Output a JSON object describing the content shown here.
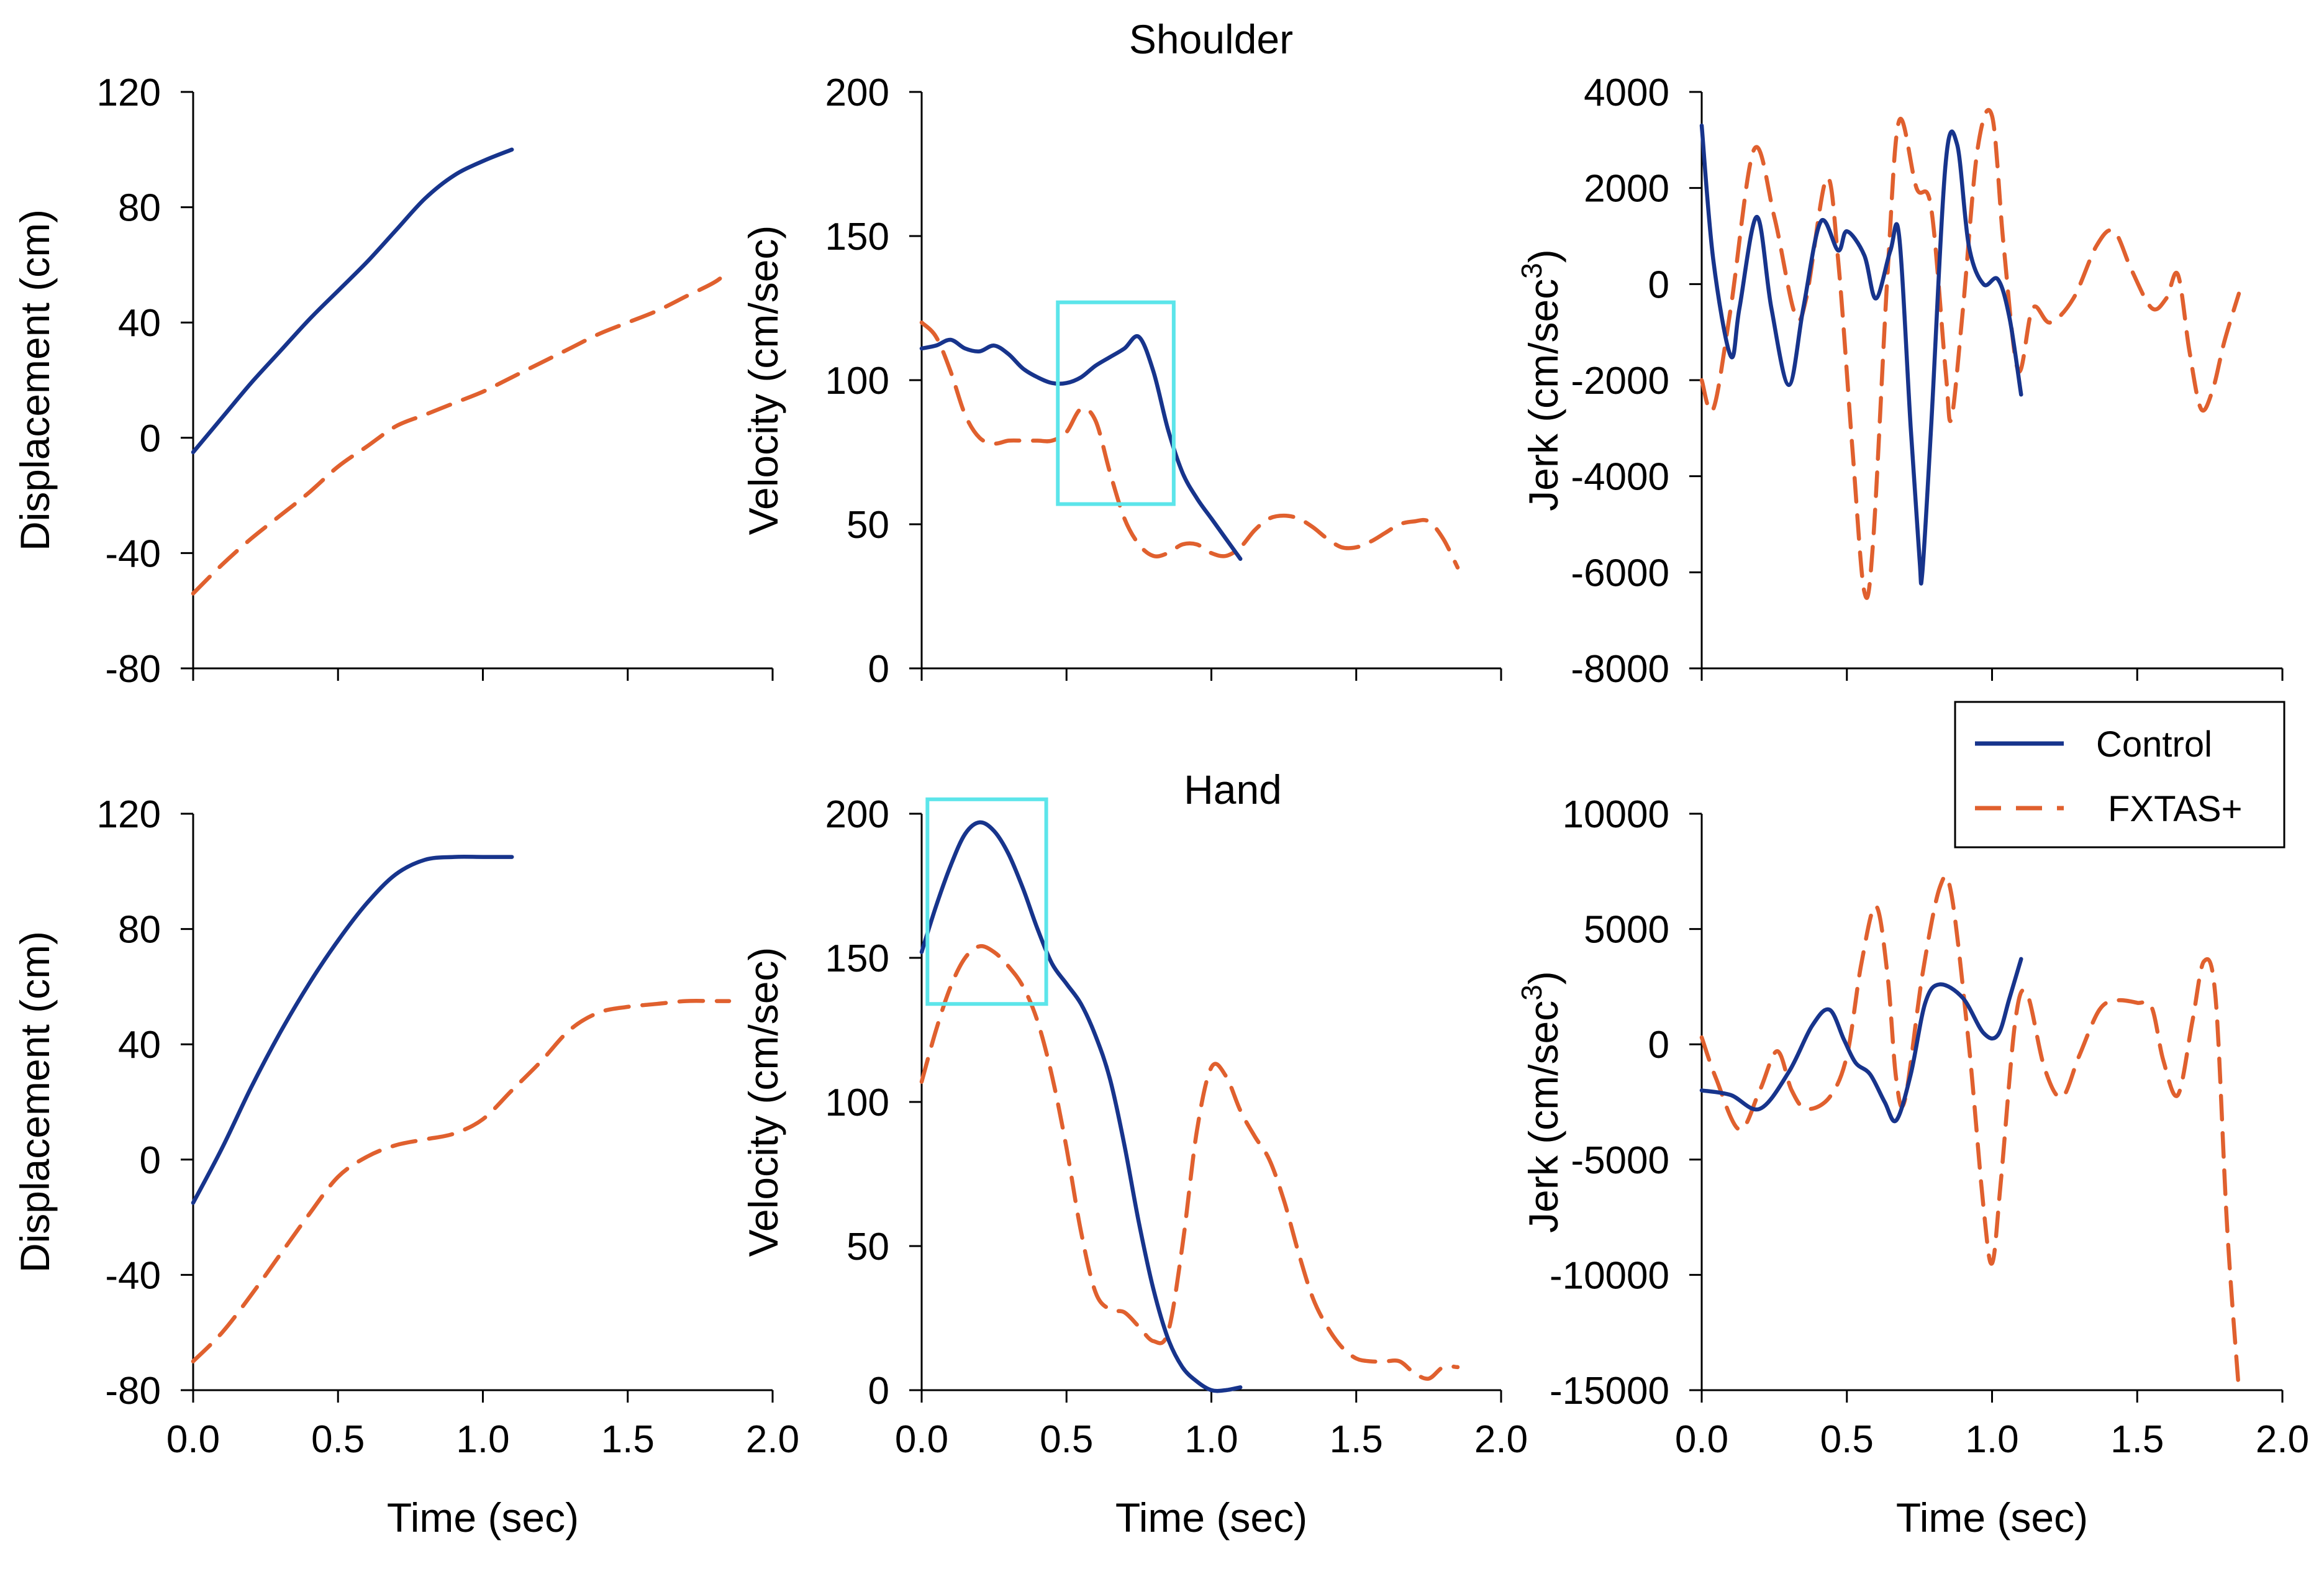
{
  "colors": {
    "control": "#17348c",
    "fxtas": "#e0602e",
    "highlight": "#5ce5ea"
  },
  "section_titles": {
    "shoulder": "Shoulder",
    "hand": "Hand"
  },
  "legend": {
    "control": "Control",
    "fxtas": "FXTAS+"
  },
  "chart_data": [
    {
      "id": "shoulder-displacement",
      "type": "line",
      "section": "Shoulder",
      "title": "",
      "xlabel": "Time (sec)",
      "ylabel": "Displacement (cm)",
      "xlim": [
        0,
        2
      ],
      "ylim": [
        -80,
        120
      ],
      "xticks": [
        0,
        0.5,
        1,
        1.5,
        2
      ],
      "yticks": [
        -80,
        -40,
        0,
        40,
        80,
        120
      ],
      "xtick_labels": [
        "0.0",
        "0.5",
        "1.0",
        "1.5",
        "2.0"
      ],
      "ytick_labels": [
        "-80",
        "-40",
        "0",
        "40",
        "80",
        "120"
      ],
      "show_xtick_labels": false,
      "show_xlabel": false,
      "series": [
        {
          "name": "Control",
          "style": "solid",
          "x": [
            0,
            0.1,
            0.2,
            0.3,
            0.4,
            0.5,
            0.6,
            0.7,
            0.8,
            0.9,
            1.0,
            1.1
          ],
          "y": [
            -5,
            7,
            19,
            30,
            41,
            51,
            61,
            72,
            83,
            91,
            96,
            100
          ]
        },
        {
          "name": "FXTAS+",
          "style": "dashed",
          "x": [
            0,
            0.1,
            0.2,
            0.3,
            0.4,
            0.5,
            0.6,
            0.7,
            0.8,
            0.9,
            1.0,
            1.1,
            1.2,
            1.3,
            1.4,
            1.5,
            1.6,
            1.7,
            1.8,
            1.85
          ],
          "y": [
            -54,
            -44,
            -35,
            -27,
            -19,
            -10,
            -3,
            4,
            8,
            12,
            16,
            21,
            26,
            31,
            36,
            40,
            44,
            49,
            54,
            58
          ]
        }
      ]
    },
    {
      "id": "shoulder-velocity",
      "type": "line",
      "section": "Shoulder",
      "title": "",
      "xlabel": "Time (sec)",
      "ylabel": "Velocity (cm/sec)",
      "xlim": [
        0,
        2
      ],
      "ylim": [
        0,
        200
      ],
      "xticks": [
        0,
        0.5,
        1,
        1.5,
        2
      ],
      "yticks": [
        0,
        50,
        100,
        150,
        200
      ],
      "xtick_labels": [
        "0.0",
        "0.5",
        "1.0",
        "1.5",
        "2.0"
      ],
      "ytick_labels": [
        "0",
        "50",
        "100",
        "150",
        "200"
      ],
      "show_xtick_labels": false,
      "show_xlabel": false,
      "highlight": {
        "x": [
          0.47,
          0.87
        ],
        "y": [
          57,
          127
        ]
      },
      "series": [
        {
          "name": "Control",
          "style": "solid",
          "x": [
            0,
            0.05,
            0.1,
            0.15,
            0.2,
            0.25,
            0.3,
            0.35,
            0.4,
            0.45,
            0.5,
            0.55,
            0.6,
            0.65,
            0.7,
            0.75,
            0.8,
            0.85,
            0.9,
            0.95,
            1.0,
            1.05,
            1.1
          ],
          "y": [
            111,
            112,
            114,
            111,
            110,
            112,
            109,
            104,
            101,
            99,
            99,
            101,
            105,
            108,
            111,
            115,
            103,
            83,
            68,
            59,
            52,
            45,
            38
          ]
        },
        {
          "name": "FXTAS+",
          "style": "dashed",
          "x": [
            0,
            0.05,
            0.1,
            0.15,
            0.2,
            0.25,
            0.3,
            0.35,
            0.4,
            0.45,
            0.5,
            0.55,
            0.6,
            0.65,
            0.7,
            0.75,
            0.8,
            0.85,
            0.9,
            0.95,
            1.0,
            1.05,
            1.1,
            1.15,
            1.2,
            1.25,
            1.3,
            1.35,
            1.4,
            1.45,
            1.5,
            1.55,
            1.6,
            1.65,
            1.7,
            1.75,
            1.8,
            1.85
          ],
          "y": [
            120,
            115,
            103,
            88,
            80,
            78,
            79,
            79,
            79,
            79,
            82,
            90,
            86,
            68,
            52,
            43,
            39,
            40,
            43,
            43,
            40,
            39,
            42,
            48,
            52,
            53,
            52,
            49,
            45,
            42,
            42,
            44,
            47,
            50,
            51,
            51,
            45,
            35
          ]
        }
      ]
    },
    {
      "id": "shoulder-jerk",
      "type": "line",
      "section": "Shoulder",
      "title": "",
      "xlabel": "Time (sec)",
      "ylabel": "Jerk (cm/sec3)",
      "ylabel_text": "Jerk (cm/sec",
      "ylabel_superscript": "3",
      "ylabel_close": ")",
      "xlim": [
        0,
        2
      ],
      "ylim": [
        -8000,
        4000
      ],
      "xticks": [
        0,
        0.5,
        1,
        1.5,
        2
      ],
      "yticks": [
        -8000,
        -6000,
        -4000,
        -2000,
        0,
        2000,
        4000
      ],
      "xtick_labels": [
        "0.0",
        "0.5",
        "1.0",
        "1.5",
        "2.0"
      ],
      "ytick_labels": [
        "-8000",
        "-6000",
        "-4000",
        "-2000",
        "0",
        "2000",
        "4000"
      ],
      "show_xtick_labels": false,
      "show_xlabel": false,
      "series": [
        {
          "name": "Control",
          "style": "solid",
          "x": [
            0,
            0.04,
            0.1,
            0.13,
            0.19,
            0.24,
            0.3,
            0.35,
            0.41,
            0.47,
            0.5,
            0.56,
            0.6,
            0.65,
            0.68,
            0.72,
            0.75,
            0.76,
            0.79,
            0.84,
            0.88,
            0.92,
            0.97,
            1.02,
            1.06,
            1.1
          ],
          "y": [
            3300,
            500,
            -1500,
            -500,
            1400,
            -500,
            -2100,
            -500,
            1300,
            700,
            1100,
            600,
            -300,
            700,
            1000,
            -3000,
            -5700,
            -6000,
            -3000,
            2500,
            2900,
            800,
            0,
            100,
            -700,
            -2300
          ]
        },
        {
          "name": "FXTAS+",
          "style": "dashed",
          "x": [
            0,
            0.04,
            0.1,
            0.18,
            0.25,
            0.32,
            0.36,
            0.43,
            0.47,
            0.52,
            0.56,
            0.59,
            0.64,
            0.68,
            0.74,
            0.79,
            0.84,
            0.86,
            0.9,
            0.95,
            1.0,
            1.04,
            1.09,
            1.14,
            1.2,
            1.28,
            1.36,
            1.42,
            1.48,
            1.55,
            1.6,
            1.64,
            1.68,
            1.72,
            1.76,
            1.8,
            1.85
          ],
          "y": [
            -2000,
            -2600,
            -500,
            2800,
            1400,
            -600,
            -300,
            2200,
            500,
            -3500,
            -6400,
            -5400,
            200,
            3400,
            2000,
            1600,
            -1800,
            -2800,
            -500,
            2800,
            3500,
            800,
            -1800,
            -500,
            -800,
            -300,
            800,
            1100,
            300,
            -500,
            -300,
            200,
            -1400,
            -2600,
            -2200,
            -1200,
            -200
          ]
        }
      ]
    },
    {
      "id": "hand-displacement",
      "type": "line",
      "section": "Hand",
      "title": "",
      "xlabel": "Time (sec)",
      "ylabel": "Displacement (cm)",
      "xlim": [
        0,
        2
      ],
      "ylim": [
        -80,
        120
      ],
      "xticks": [
        0,
        0.5,
        1,
        1.5,
        2
      ],
      "yticks": [
        -80,
        -40,
        0,
        40,
        80,
        120
      ],
      "xtick_labels": [
        "0.0",
        "0.5",
        "1.0",
        "1.5",
        "2.0"
      ],
      "ytick_labels": [
        "-80",
        "-40",
        "0",
        "40",
        "80",
        "120"
      ],
      "show_xtick_labels": true,
      "show_xlabel": true,
      "series": [
        {
          "name": "Control",
          "style": "solid",
          "x": [
            0,
            0.1,
            0.2,
            0.3,
            0.4,
            0.5,
            0.6,
            0.7,
            0.8,
            0.9,
            1.0,
            1.1
          ],
          "y": [
            -15,
            4,
            25,
            44,
            61,
            76,
            89,
            99,
            104,
            105,
            105,
            105
          ]
        },
        {
          "name": "FXTAS+",
          "style": "dashed",
          "x": [
            0,
            0.1,
            0.2,
            0.3,
            0.4,
            0.5,
            0.6,
            0.7,
            0.8,
            0.9,
            1.0,
            1.1,
            1.2,
            1.3,
            1.4,
            1.5,
            1.6,
            1.7,
            1.8,
            1.85
          ],
          "y": [
            -70,
            -60,
            -47,
            -33,
            -19,
            -6,
            1,
            5,
            7,
            9,
            14,
            24,
            34,
            45,
            51,
            53,
            54,
            55,
            55,
            55
          ]
        }
      ]
    },
    {
      "id": "hand-velocity",
      "type": "line",
      "section": "Hand",
      "title": "",
      "xlabel": "Time (sec)",
      "ylabel": "Velocity (cm/sec)",
      "xlim": [
        0,
        2
      ],
      "ylim": [
        0,
        200
      ],
      "xticks": [
        0,
        0.5,
        1,
        1.5,
        2
      ],
      "yticks": [
        0,
        50,
        100,
        150,
        200
      ],
      "xtick_labels": [
        "0.0",
        "0.5",
        "1.0",
        "1.5",
        "2.0"
      ],
      "ytick_labels": [
        "0",
        "50",
        "100",
        "150",
        "200"
      ],
      "show_xtick_labels": true,
      "show_xlabel": true,
      "highlight": {
        "x": [
          0.02,
          0.43
        ],
        "y": [
          134,
          205
        ]
      },
      "series": [
        {
          "name": "Control",
          "style": "solid",
          "x": [
            0,
            0.05,
            0.1,
            0.15,
            0.2,
            0.25,
            0.3,
            0.35,
            0.4,
            0.45,
            0.5,
            0.55,
            0.6,
            0.65,
            0.7,
            0.75,
            0.8,
            0.85,
            0.9,
            0.95,
            1.0,
            1.05,
            1.1
          ],
          "y": [
            152,
            168,
            182,
            193,
            197,
            194,
            186,
            174,
            160,
            148,
            141,
            134,
            123,
            108,
            85,
            58,
            35,
            18,
            8,
            3,
            0,
            0,
            1
          ]
        },
        {
          "name": "FXTAS+",
          "style": "dashed",
          "x": [
            0,
            0.05,
            0.1,
            0.15,
            0.2,
            0.25,
            0.3,
            0.35,
            0.4,
            0.45,
            0.5,
            0.55,
            0.6,
            0.65,
            0.7,
            0.75,
            0.8,
            0.85,
            0.9,
            0.95,
            1.0,
            1.05,
            1.1,
            1.15,
            1.2,
            1.25,
            1.3,
            1.35,
            1.4,
            1.45,
            1.5,
            1.55,
            1.6,
            1.65,
            1.7,
            1.75,
            1.8,
            1.85
          ],
          "y": [
            107,
            125,
            140,
            150,
            154,
            152,
            147,
            140,
            128,
            109,
            84,
            55,
            34,
            28,
            27,
            22,
            17,
            20,
            50,
            90,
            112,
            109,
            97,
            88,
            80,
            66,
            48,
            32,
            22,
            15,
            11,
            10,
            10,
            10,
            6,
            4,
            8,
            8
          ]
        }
      ]
    },
    {
      "id": "hand-jerk",
      "type": "line",
      "section": "Hand",
      "title": "",
      "xlabel": "Time (sec)",
      "ylabel": "Jerk (cm/sec3)",
      "ylabel_text": "Jerk (cm/sec",
      "ylabel_superscript": "3",
      "ylabel_close": ")",
      "xlim": [
        0,
        2
      ],
      "ylim": [
        -15000,
        10000
      ],
      "xticks": [
        0,
        0.5,
        1,
        1.5,
        2
      ],
      "yticks": [
        -15000,
        -10000,
        -5000,
        0,
        5000,
        10000
      ],
      "xtick_labels": [
        "0.0",
        "0.5",
        "1.0",
        "1.5",
        "2.0"
      ],
      "ytick_labels": [
        "-15000",
        "-10000",
        "-5000",
        "0",
        "5000",
        "10000"
      ],
      "show_xtick_labels": true,
      "show_xlabel": true,
      "series": [
        {
          "name": "Control",
          "style": "solid",
          "x": [
            0,
            0.1,
            0.2,
            0.3,
            0.38,
            0.44,
            0.49,
            0.53,
            0.58,
            0.63,
            0.67,
            0.72,
            0.77,
            0.82,
            0.9,
            0.97,
            1.02,
            1.06,
            1.1
          ],
          "y": [
            -2000,
            -2200,
            -2800,
            -1200,
            800,
            1500,
            200,
            -800,
            -1300,
            -2500,
            -3300,
            -1300,
            1800,
            2600,
            2000,
            500,
            400,
            2000,
            3700
          ]
        },
        {
          "name": "FXTAS+",
          "style": "dashed",
          "x": [
            0,
            0.05,
            0.13,
            0.2,
            0.26,
            0.31,
            0.36,
            0.44,
            0.5,
            0.55,
            0.6,
            0.64,
            0.67,
            0.7,
            0.76,
            0.82,
            0.86,
            0.92,
            0.97,
            1.0,
            1.03,
            1.08,
            1.12,
            1.18,
            1.24,
            1.3,
            1.37,
            1.43,
            1.5,
            1.55,
            1.59,
            1.64,
            1.69,
            1.73,
            1.77,
            1.81,
            1.85
          ],
          "y": [
            300,
            -1500,
            -3700,
            -2000,
            -300,
            -2000,
            -2800,
            -2300,
            -500,
            3500,
            6000,
            3000,
            -1500,
            -2400,
            3000,
            6800,
            6500,
            0,
            -7000,
            -9500,
            -6000,
            1000,
            2200,
            -1000,
            -2300,
            -500,
            1500,
            1900,
            1800,
            1600,
            -700,
            -2200,
            1000,
            3600,
            2000,
            -8000,
            -15000
          ]
        }
      ]
    }
  ]
}
